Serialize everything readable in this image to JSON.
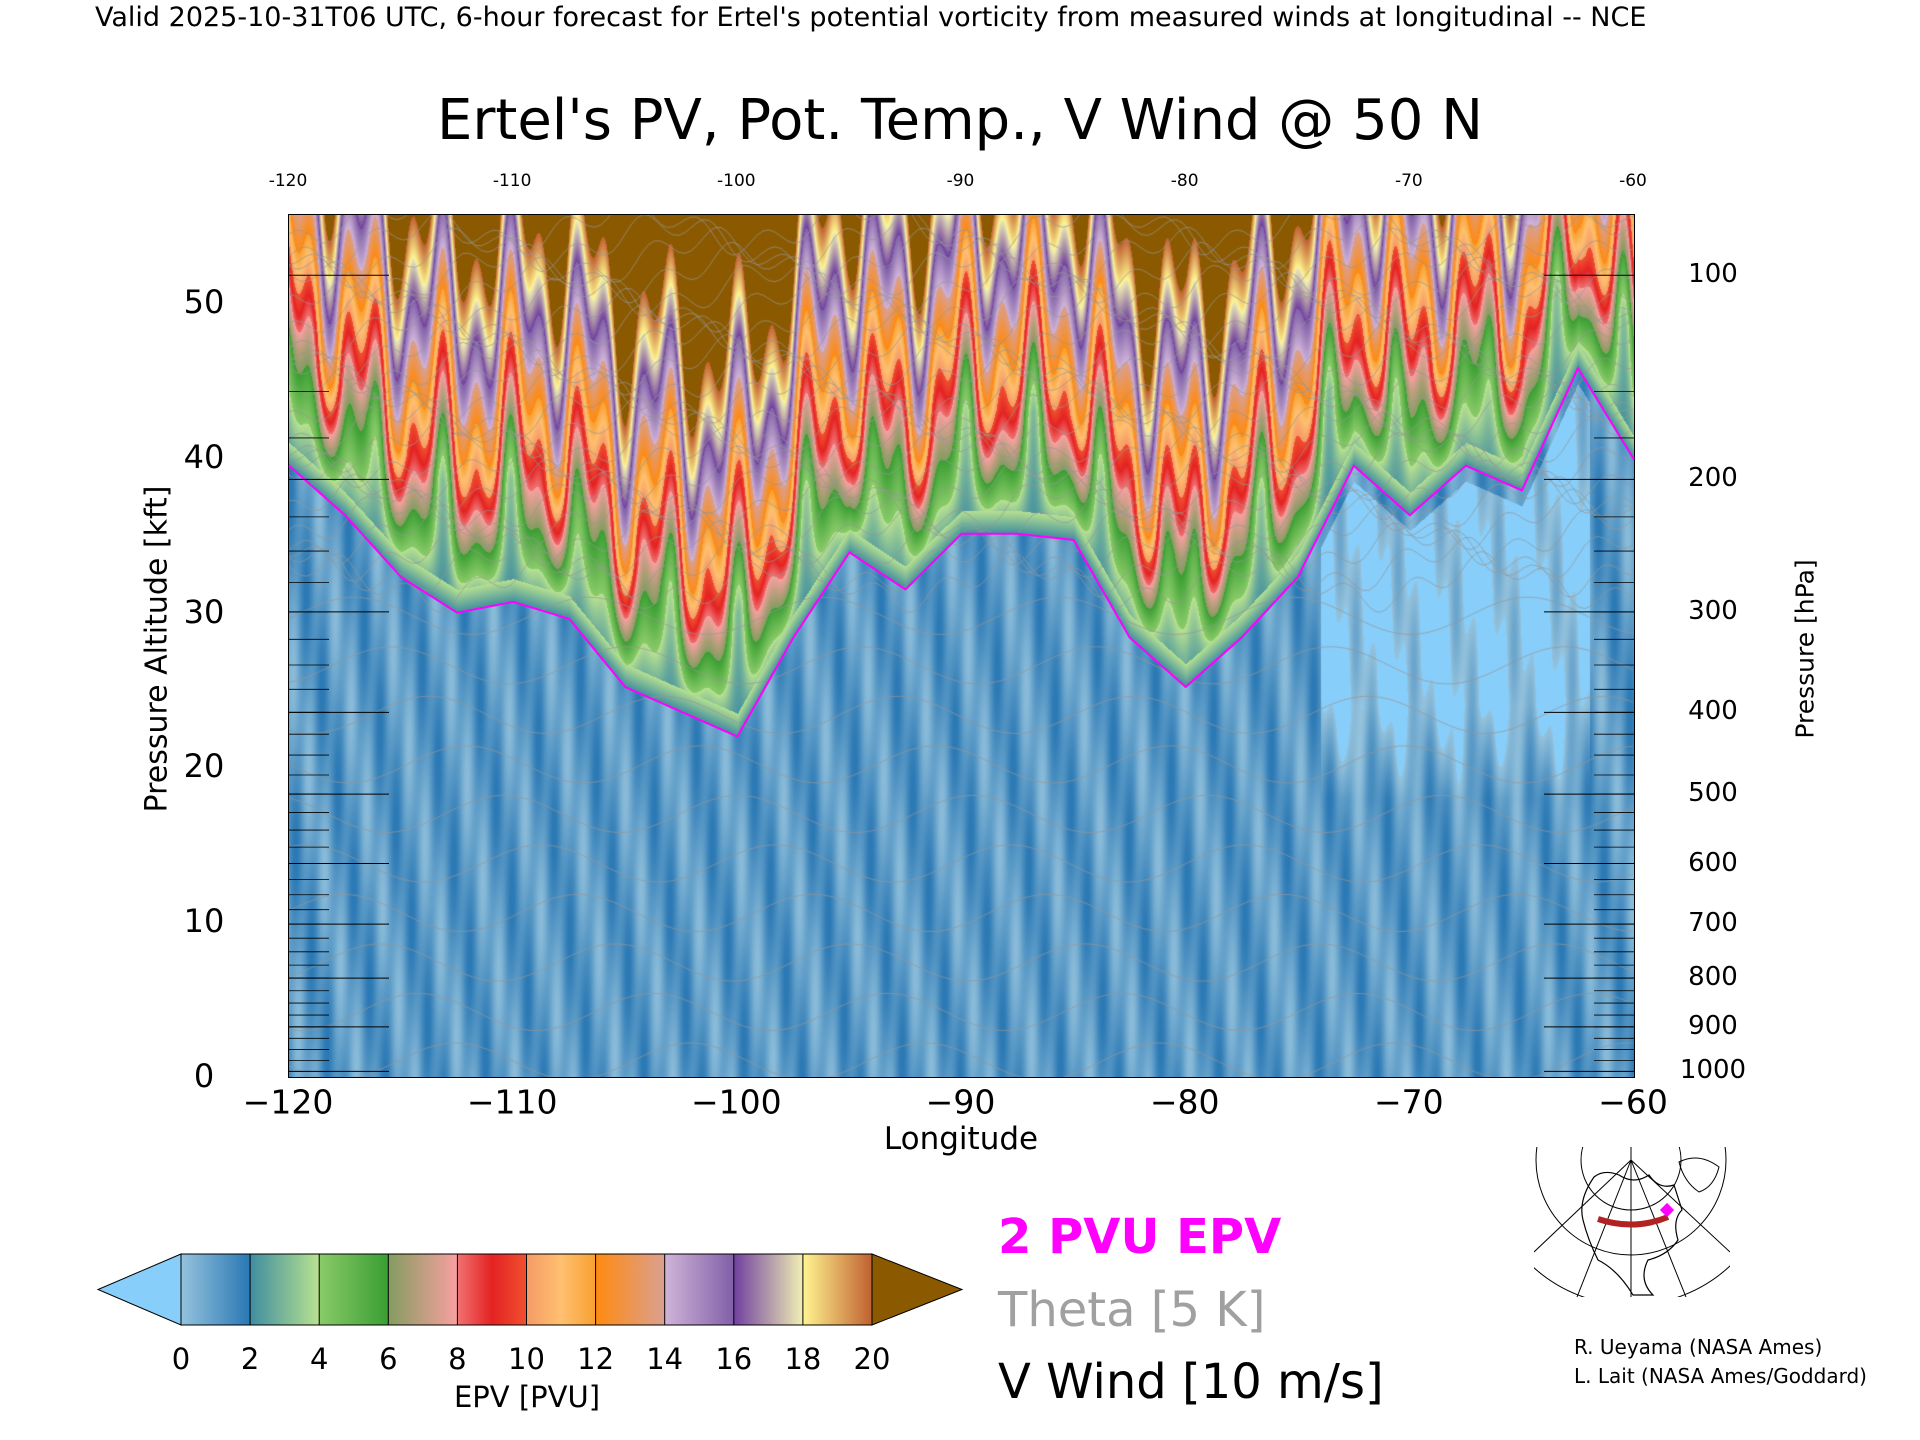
{
  "header": {
    "valid_line": "Valid 2025-10-31T06 UTC, 6-hour forecast for Ertel's potential vorticity from measured winds at longitudinal -- NCE"
  },
  "chart_data": {
    "type": "heatmap",
    "title": "Ertel's PV, Pot. Temp., V Wind @ 50 N",
    "xlabel": "Longitude",
    "ylabel": "Pressure Altitude [kft]",
    "y2label": "Pressure [hPa]",
    "xlim": [
      -120,
      -60
    ],
    "ylim": [
      0,
      55.7
    ],
    "xticks": [
      -120,
      -110,
      -100,
      -90,
      -80,
      -70,
      -60
    ],
    "xtick_labels": [
      "−120",
      "−110",
      "−100",
      "−90",
      "−80",
      "−70",
      "−60"
    ],
    "top_tick_labels": [
      "-120",
      "-110",
      "-100",
      "-90",
      "-80",
      "-70",
      "-60"
    ],
    "yticks": [
      0,
      10,
      20,
      30,
      40,
      50
    ],
    "ytick_labels": [
      "0",
      "10",
      "20",
      "30",
      "40",
      "50"
    ],
    "y2ticks": [
      100,
      200,
      300,
      400,
      500,
      600,
      700,
      800,
      900,
      1000
    ],
    "y2tick_labels": [
      "100",
      "200",
      "300",
      "400",
      "500",
      "600",
      "700",
      "800",
      "900",
      "1000"
    ],
    "colorbar": {
      "label": "EPV [PVU]",
      "ticks": [
        "0",
        "2",
        "4",
        "6",
        "8",
        "10",
        "12",
        "14",
        "16",
        "18",
        "20"
      ],
      "under": "#87cefa",
      "over": "#8b5a00",
      "stops": [
        [
          0,
          "#95c3dd"
        ],
        [
          1.99,
          "#2a78b4"
        ],
        [
          2,
          "#3f8da0"
        ],
        [
          3.99,
          "#b8e290"
        ],
        [
          4,
          "#8acb6a"
        ],
        [
          5.99,
          "#3a9e32"
        ],
        [
          6,
          "#849c60"
        ],
        [
          7.99,
          "#f8a0a0"
        ],
        [
          8,
          "#f07272"
        ],
        [
          9,
          "#e42222"
        ],
        [
          9.99,
          "#f05030"
        ],
        [
          10,
          "#f59a66"
        ],
        [
          11,
          "#ffc070"
        ],
        [
          11.99,
          "#f8a030"
        ],
        [
          12,
          "#ff8a10"
        ],
        [
          13.99,
          "#daa090"
        ],
        [
          14,
          "#d0b4d8"
        ],
        [
          15.99,
          "#8060a8"
        ],
        [
          16,
          "#7040a0"
        ],
        [
          17.99,
          "#f0eeb4"
        ],
        [
          18,
          "#fff590"
        ],
        [
          20,
          "#c06030"
        ]
      ]
    },
    "tropopause_2pvu": {
      "lon": [
        -120,
        -117.5,
        -115,
        -112.5,
        -110,
        -107.5,
        -105,
        -102.5,
        -100,
        -97.5,
        -95,
        -92.5,
        -90,
        -87.5,
        -85,
        -82.5,
        -80,
        -77.5,
        -75,
        -72.5,
        -70,
        -67.5,
        -65,
        -62.5,
        -60
      ],
      "alt_kft": [
        39.5,
        36.3,
        32.3,
        30.0,
        30.7,
        29.6,
        25.2,
        23.6,
        22.0,
        28.4,
        33.9,
        31.5,
        35.1,
        35.1,
        34.7,
        28.4,
        25.2,
        28.4,
        32.3,
        39.5,
        36.3,
        39.5,
        37.9,
        45.8,
        39.9
      ]
    },
    "legend": [
      {
        "label": "2 PVU EPV",
        "color": "#ff00ff"
      },
      {
        "label": "Theta [5 K]",
        "color": "#a0a0a0"
      },
      {
        "label": "V Wind [10 m/s]",
        "color": "#000000"
      }
    ]
  },
  "credits": [
    "R. Ueyama (NASA Ames)",
    "L. Lait (NASA Ames/Goddard)"
  ]
}
